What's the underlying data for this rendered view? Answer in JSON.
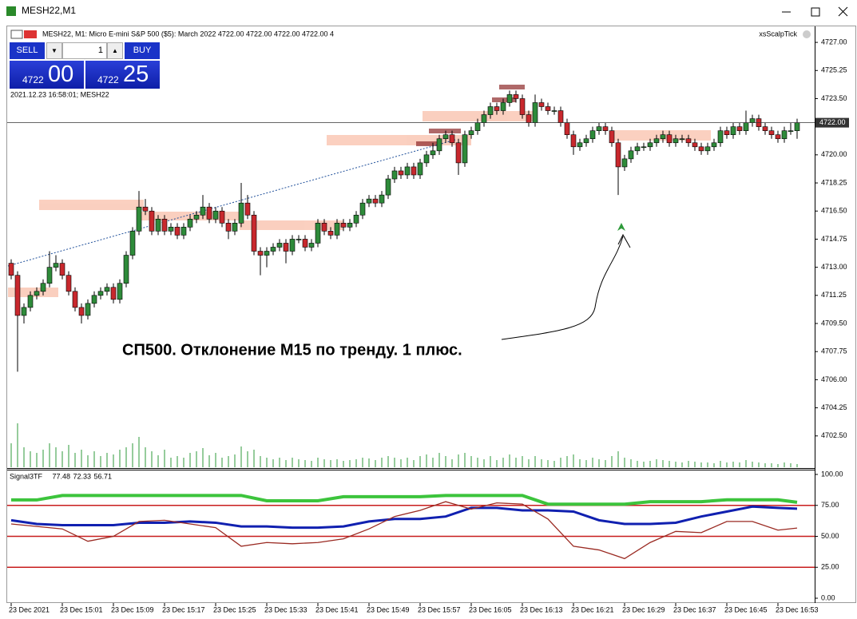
{
  "window": {
    "title": "MESH22,M1"
  },
  "chart_header": "MESH22, M1:  Micro E-mini S&P 500 ($5): March 2022  4722.00 4722.00 4722.00 4722.00  4",
  "expert": "xsScalpTick",
  "trade_panel": {
    "sell": "SELL",
    "buy": "BUY",
    "volume": "1",
    "sell_price": "4722",
    "sell_points": "00",
    "buy_price": "4722",
    "buy_points": "25"
  },
  "timestamp": "2021.12.23 16:58:01; MESH22",
  "annotation": "СП500. Отклонение М15 по тренду. 1 плюс.",
  "chart_data": [
    {
      "type": "candlestick",
      "candles": [
        [
          4713.25,
          4713.5,
          4712.25,
          4712.5
        ],
        [
          4712.5,
          4712.75,
          4706.5,
          4710
        ],
        [
          4710,
          4710.75,
          4709.5,
          4710.5
        ],
        [
          4710.5,
          4711.5,
          4710.25,
          4711.25
        ],
        [
          4711.25,
          4711.75,
          4711,
          4711.5
        ],
        [
          4711.5,
          4712.25,
          4711.25,
          4712
        ],
        [
          4712,
          4714,
          4711.75,
          4713
        ],
        [
          4713,
          4713.75,
          4712.75,
          4713.25
        ],
        [
          4713.25,
          4713.5,
          4712.25,
          4712.5
        ],
        [
          4712.5,
          4712.75,
          4711.25,
          4711.5
        ],
        [
          4711.5,
          4711.75,
          4710.25,
          4710.5
        ],
        [
          4710.5,
          4710.75,
          4709.5,
          4710
        ],
        [
          4710,
          4711,
          4709.75,
          4710.75
        ],
        [
          4710.75,
          4711.5,
          4710.5,
          4711.25
        ],
        [
          4711.25,
          4711.75,
          4711,
          4711.5
        ],
        [
          4711.5,
          4712,
          4711.25,
          4711.75
        ],
        [
          4711.75,
          4712,
          4710.75,
          4711
        ],
        [
          4711,
          4712.25,
          4710.75,
          4712
        ],
        [
          4712,
          4714,
          4711.75,
          4713.75
        ],
        [
          4713.75,
          4715.5,
          4713.5,
          4715.25
        ],
        [
          4715.25,
          4717.75,
          4715,
          4716.75
        ],
        [
          4716.75,
          4717.25,
          4716.25,
          4716.5
        ],
        [
          4716.5,
          4716.75,
          4715,
          4715.25
        ],
        [
          4715.25,
          4716.25,
          4715,
          4716
        ],
        [
          4716,
          4716.25,
          4715,
          4715.25
        ],
        [
          4715.25,
          4715.75,
          4715,
          4715.5
        ],
        [
          4715.5,
          4715.75,
          4714.75,
          4715
        ],
        [
          4715,
          4715.75,
          4714.75,
          4715.5
        ],
        [
          4715.5,
          4716.25,
          4715.25,
          4716
        ],
        [
          4716,
          4716.5,
          4715.75,
          4716.25
        ],
        [
          4716.25,
          4717.5,
          4716,
          4716.75
        ],
        [
          4716.75,
          4717,
          4715.75,
          4716
        ],
        [
          4716,
          4716.75,
          4715.75,
          4716.5
        ],
        [
          4716.5,
          4716.75,
          4715.5,
          4715.75
        ],
        [
          4715.75,
          4716,
          4714.75,
          4715.25
        ],
        [
          4715.25,
          4716,
          4715,
          4715.75
        ],
        [
          4715.75,
          4718.25,
          4715.5,
          4717
        ],
        [
          4717,
          4717.5,
          4716,
          4716.25
        ],
        [
          4716.25,
          4716.5,
          4713.75,
          4714
        ],
        [
          4714,
          4714.25,
          4712.5,
          4713.75
        ],
        [
          4713.75,
          4714.25,
          4713,
          4714
        ],
        [
          4714,
          4714.5,
          4713.75,
          4714.25
        ],
        [
          4714.25,
          4714.75,
          4714,
          4714.5
        ],
        [
          4714.5,
          4714.75,
          4713.25,
          4714
        ],
        [
          4714,
          4715,
          4713.75,
          4714.75
        ],
        [
          4714.75,
          4715,
          4714.5,
          4714.75
        ],
        [
          4714.75,
          4715,
          4714,
          4714.25
        ],
        [
          4714.25,
          4714.75,
          4714,
          4714.5
        ],
        [
          4714.5,
          4716,
          4714.25,
          4715.75
        ],
        [
          4715.75,
          4716,
          4715,
          4715.25
        ],
        [
          4715.25,
          4715.5,
          4714.75,
          4715
        ],
        [
          4715,
          4716,
          4714.75,
          4715.75
        ],
        [
          4715.75,
          4716,
          4715.25,
          4715.5
        ],
        [
          4715.5,
          4716,
          4715.25,
          4715.75
        ],
        [
          4715.75,
          4716.5,
          4715.5,
          4716.25
        ],
        [
          4716.25,
          4717.25,
          4716,
          4717
        ],
        [
          4717,
          4717.5,
          4716.75,
          4717.25
        ],
        [
          4717.25,
          4717.5,
          4716.75,
          4717
        ],
        [
          4717,
          4717.75,
          4716.75,
          4717.5
        ],
        [
          4717.5,
          4718.75,
          4717.25,
          4718.5
        ],
        [
          4718.5,
          4719.25,
          4718.25,
          4719
        ],
        [
          4719,
          4719.25,
          4718.5,
          4718.75
        ],
        [
          4718.75,
          4719.5,
          4718.5,
          4719.25
        ],
        [
          4719.25,
          4719.5,
          4718.5,
          4718.75
        ],
        [
          4718.75,
          4719.75,
          4718.5,
          4719.5
        ],
        [
          4719.5,
          4720.25,
          4719.25,
          4720
        ],
        [
          4720,
          4720.75,
          4719.75,
          4720.25
        ],
        [
          4720.25,
          4721.25,
          4720,
          4721
        ],
        [
          4721,
          4721.5,
          4720.75,
          4721.25
        ],
        [
          4721.25,
          4721.5,
          4720.5,
          4720.75
        ],
        [
          4720.75,
          4721,
          4718.75,
          4719.5
        ],
        [
          4719.5,
          4721.5,
          4719.25,
          4721.25
        ],
        [
          4721.25,
          4721.75,
          4721,
          4721.5
        ],
        [
          4721.5,
          4722.25,
          4721.25,
          4722
        ],
        [
          4722,
          4722.75,
          4721.75,
          4722.5
        ],
        [
          4722.5,
          4723.25,
          4722.25,
          4723
        ],
        [
          4723,
          4723.25,
          4722.5,
          4722.75
        ],
        [
          4722.75,
          4723.5,
          4722.5,
          4723.25
        ],
        [
          4723.25,
          4724,
          4723,
          4723.75
        ],
        [
          4723.75,
          4724,
          4723.25,
          4723.5
        ],
        [
          4723.5,
          4723.75,
          4722.25,
          4722.5
        ],
        [
          4722.5,
          4722.75,
          4721.75,
          4722
        ],
        [
          4722,
          4723.75,
          4721.75,
          4723.25
        ],
        [
          4723.25,
          4723.5,
          4722.75,
          4723
        ],
        [
          4723,
          4723.25,
          4722.5,
          4722.75
        ],
        [
          4722.75,
          4723,
          4722.5,
          4722.75
        ],
        [
          4722.75,
          4723,
          4721.75,
          4722
        ],
        [
          4722,
          4722.25,
          4721,
          4721.25
        ],
        [
          4721.25,
          4721.5,
          4720,
          4720.5
        ],
        [
          4720.5,
          4721,
          4720.25,
          4720.75
        ],
        [
          4720.75,
          4721.25,
          4720.5,
          4721
        ],
        [
          4721,
          4721.75,
          4720.75,
          4721.5
        ],
        [
          4721.5,
          4722,
          4721.25,
          4721.75
        ],
        [
          4721.75,
          4722,
          4721.25,
          4721.5
        ],
        [
          4721.5,
          4721.75,
          4720.5,
          4720.75
        ],
        [
          4720.75,
          4721,
          4717.5,
          4719.25
        ],
        [
          4719.25,
          4720,
          4719,
          4719.75
        ],
        [
          4719.75,
          4720.5,
          4719.5,
          4720.25
        ],
        [
          4720.25,
          4720.75,
          4720,
          4720.5
        ],
        [
          4720.5,
          4720.75,
          4720.25,
          4720.5
        ],
        [
          4720.5,
          4721,
          4720.25,
          4720.75
        ],
        [
          4720.75,
          4721.25,
          4720.5,
          4721
        ],
        [
          4721,
          4721.5,
          4720.75,
          4721.25
        ],
        [
          4721.25,
          4721.5,
          4720.5,
          4720.75
        ],
        [
          4720.75,
          4721.25,
          4720.5,
          4721
        ],
        [
          4721,
          4721.25,
          4720.75,
          4721
        ],
        [
          4721,
          4721.25,
          4720.5,
          4720.75
        ],
        [
          4720.75,
          4721,
          4720.25,
          4720.5
        ],
        [
          4720.5,
          4720.75,
          4720,
          4720.25
        ],
        [
          4720.25,
          4720.75,
          4720,
          4720.5
        ],
        [
          4720.5,
          4721,
          4720.25,
          4720.75
        ],
        [
          4720.75,
          4721.75,
          4720.5,
          4721.5
        ],
        [
          4721.5,
          4721.75,
          4721,
          4721.25
        ],
        [
          4721.25,
          4722,
          4721,
          4721.75
        ],
        [
          4721.75,
          4722,
          4721.25,
          4721.5
        ],
        [
          4721.5,
          4722.75,
          4721.25,
          4722
        ],
        [
          4722,
          4722.5,
          4721.75,
          4722.25
        ],
        [
          4722.25,
          4722.5,
          4721.5,
          4721.75
        ],
        [
          4721.75,
          4722,
          4721.25,
          4721.5
        ],
        [
          4721.5,
          4721.75,
          4721,
          4721.25
        ],
        [
          4721.25,
          4721.5,
          4720.75,
          4721
        ],
        [
          4721,
          4721.75,
          4720.75,
          4721.5
        ],
        [
          4721.5,
          4722,
          4721.25,
          4721.5
        ],
        [
          4721.5,
          4722.25,
          4721,
          4722
        ]
      ],
      "volumes": [
        30,
        55,
        25,
        20,
        18,
        22,
        30,
        25,
        20,
        28,
        18,
        22,
        15,
        20,
        14,
        18,
        16,
        22,
        25,
        30,
        38,
        25,
        20,
        15,
        22,
        12,
        14,
        12,
        18,
        20,
        24,
        15,
        18,
        12,
        14,
        16,
        26,
        20,
        22,
        14,
        12,
        10,
        12,
        9,
        12,
        10,
        9,
        8,
        12,
        10,
        9,
        10,
        8,
        9,
        10,
        12,
        11,
        9,
        12,
        14,
        12,
        10,
        12,
        9,
        14,
        16,
        12,
        18,
        14,
        10,
        16,
        18,
        14,
        12,
        10,
        14,
        9,
        12,
        16,
        12,
        14,
        10,
        14,
        10,
        9,
        8,
        12,
        14,
        16,
        10,
        9,
        12,
        10,
        9,
        14,
        20,
        12,
        10,
        8,
        7,
        8,
        10,
        9,
        8,
        7,
        6,
        8,
        7,
        6,
        6,
        5,
        8,
        6,
        7,
        6,
        9,
        7,
        6,
        5,
        5,
        4,
        6,
        5,
        4
      ],
      "ylim": [
        4700.55,
        4727.65
      ],
      "yticks": [
        {
          "value": 4727,
          "label": "4727.00"
        },
        {
          "value": 4725.25,
          "label": "4725.25"
        },
        {
          "value": 4723.5,
          "label": "4723.50"
        },
        {
          "value": 4720,
          "label": "4720.00"
        },
        {
          "value": 4718.25,
          "label": "4718.25"
        },
        {
          "value": 4716.5,
          "label": "4716.50"
        },
        {
          "value": 4714.75,
          "label": "4714.75"
        },
        {
          "value": 4713,
          "label": "4713.00"
        },
        {
          "value": 4711.25,
          "label": "4711.25"
        },
        {
          "value": 4709.5,
          "label": "4709.50"
        },
        {
          "value": 4707.75,
          "label": "4707.75"
        },
        {
          "value": 4706,
          "label": "4706.00"
        },
        {
          "value": 4704.25,
          "label": "4704.25"
        },
        {
          "value": 4702.5,
          "label": "4702.50"
        }
      ],
      "current_price": {
        "value": 4722,
        "label": "4722.00"
      },
      "xticks": [
        {
          "value": 0,
          "label": "23 Dec 2021"
        },
        {
          "value": 8,
          "label": "23 Dec 15:01"
        },
        {
          "value": 16,
          "label": "23 Dec 15:09"
        },
        {
          "value": 24,
          "label": "23 Dec 15:17"
        },
        {
          "value": 32,
          "label": "23 Dec 15:25"
        },
        {
          "value": 40,
          "label": "23 Dec 15:33"
        },
        {
          "value": 48,
          "label": "23 Dec 15:41"
        },
        {
          "value": 56,
          "label": "23 Dec 15:49"
        },
        {
          "value": 64,
          "label": "23 Dec 15:57"
        },
        {
          "value": 72,
          "label": "23 Dec 16:05"
        },
        {
          "value": 80,
          "label": "23 Dec 16:13"
        },
        {
          "value": 88,
          "label": "23 Dec 16:21"
        },
        {
          "value": 96,
          "label": "23 Dec 16:29"
        },
        {
          "value": 104,
          "label": "23 Dec 16:37"
        },
        {
          "value": 112,
          "label": "23 Dec 16:45"
        },
        {
          "value": 120,
          "label": "23 Dec 16:53"
        }
      ],
      "bull_color": "#2e8b3a",
      "bear_color": "#c8282d",
      "volume_color": "#2e9a3a"
    },
    {
      "type": "line",
      "title": "Signal3TF",
      "x": [
        0,
        4,
        8,
        12,
        16,
        20,
        24,
        28,
        32,
        36,
        40,
        44,
        48,
        52,
        56,
        60,
        64,
        68,
        72,
        76,
        80,
        84,
        88,
        92,
        96,
        100,
        104,
        108,
        112,
        116,
        120,
        123
      ],
      "series": [
        {
          "color": "#3cc43c",
          "width": 4,
          "values": [
            79.4,
            79.4,
            83,
            83,
            83,
            83,
            83,
            83,
            83,
            83,
            78.7,
            78.7,
            78.7,
            82,
            82,
            82,
            82,
            83,
            83,
            83,
            83,
            76,
            76,
            76,
            76,
            78,
            78,
            78,
            79.5,
            79.5,
            79.5,
            77.48
          ]
        },
        {
          "color": "#1020b0",
          "width": 3,
          "values": [
            63,
            60,
            59,
            59,
            59,
            61,
            61,
            62,
            61,
            58,
            58,
            57,
            57,
            58,
            62,
            64,
            64,
            66,
            73,
            73,
            71,
            71,
            70,
            63,
            60,
            60,
            61,
            66,
            70,
            74,
            73,
            72.33
          ]
        },
        {
          "color": "#9a2a22",
          "width": 1.3,
          "values": [
            60,
            58,
            56,
            46,
            50,
            62,
            63,
            60,
            57,
            42,
            45,
            44,
            45,
            48,
            56,
            66,
            71,
            78,
            72,
            77,
            76,
            64,
            42,
            39,
            32,
            45,
            54,
            53,
            62,
            62,
            55,
            56.71
          ]
        }
      ],
      "levels": [
        75,
        50,
        25
      ],
      "level_color": "#c81e1e",
      "ylim": [
        0,
        100
      ],
      "yticks": [
        {
          "value": 100,
          "label": "100.00"
        },
        {
          "value": 75,
          "label": "75.00"
        },
        {
          "value": 50,
          "label": "50.00"
        },
        {
          "value": 25,
          "label": "25.00"
        },
        {
          "value": 0,
          "label": "0.00"
        }
      ]
    }
  ]
}
